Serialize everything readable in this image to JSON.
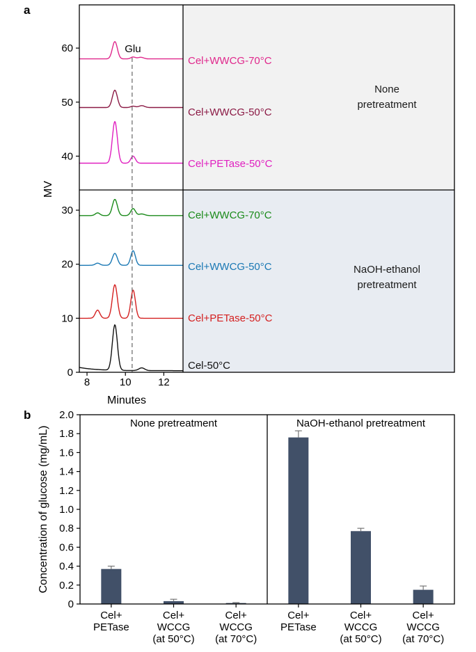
{
  "chart_data": [
    {
      "panel": "a",
      "type": "line",
      "xlabel": "Minutes",
      "ylabel": "MV",
      "xlim": [
        7.6,
        13.0
      ],
      "ylim": [
        0,
        68
      ],
      "xticks": [
        8,
        10,
        12
      ],
      "xtick_labels": [
        "8",
        "10",
        "12"
      ],
      "yticks": [
        0,
        10,
        20,
        30,
        40,
        50,
        60
      ],
      "ytick_labels": [
        "0",
        "10",
        "20",
        "30",
        "40",
        "50",
        "60"
      ],
      "marker": {
        "label": "Glu",
        "x": 10.35
      },
      "regions": [
        {
          "label_line1": "None",
          "label_line2": "pretreatment",
          "color": "#f2f2f2"
        },
        {
          "label_line1": "NaOH-ethanol",
          "label_line2": "pretreatment",
          "color": "#e8ecf2"
        }
      ],
      "series": [
        {
          "name": "Cel+WWCG-70°C",
          "color": "#e0288c",
          "baseline": 58.0,
          "peaks": [
            {
              "x": 9.45,
              "h": 3.2,
              "w": 0.13
            },
            {
              "x": 10.4,
              "h": 0.35,
              "w": 0.12
            },
            {
              "x": 10.8,
              "h": 0.3,
              "w": 0.15
            }
          ]
        },
        {
          "name": "Cel+WWCG-50°C",
          "color": "#8b1a45",
          "baseline": 49.0,
          "peaks": [
            {
              "x": 9.45,
              "h": 3.2,
              "w": 0.13
            },
            {
              "x": 10.4,
              "h": 0.25,
              "w": 0.12
            },
            {
              "x": 10.85,
              "h": 0.35,
              "w": 0.15
            }
          ]
        },
        {
          "name": "Cel+PETase-50°C",
          "color": "#e020c0",
          "baseline": 38.7,
          "peaks": [
            {
              "x": 9.45,
              "h": 7.7,
              "w": 0.13
            },
            {
              "x": 10.4,
              "h": 1.3,
              "w": 0.12
            }
          ]
        },
        {
          "name": "Cel+WWCG-70°C",
          "color": "#1a8a1a",
          "baseline": 29.0,
          "peaks": [
            {
              "x": 8.55,
              "h": 0.5,
              "w": 0.12
            },
            {
              "x": 9.45,
              "h": 3.0,
              "w": 0.13
            },
            {
              "x": 10.4,
              "h": 1.3,
              "w": 0.12
            },
            {
              "x": 10.85,
              "h": 0.3,
              "w": 0.15
            }
          ]
        },
        {
          "name": "Cel+WWCG-50°C",
          "color": "#1a78b4",
          "baseline": 19.8,
          "peaks": [
            {
              "x": 8.55,
              "h": 0.4,
              "w": 0.12
            },
            {
              "x": 9.45,
              "h": 2.2,
              "w": 0.13
            },
            {
              "x": 10.4,
              "h": 2.7,
              "w": 0.12
            }
          ]
        },
        {
          "name": "Cel+PETase-50°C",
          "color": "#d42020",
          "baseline": 10.0,
          "peaks": [
            {
              "x": 8.55,
              "h": 1.5,
              "w": 0.12
            },
            {
              "x": 9.45,
              "h": 6.2,
              "w": 0.13
            },
            {
              "x": 10.4,
              "h": 5.2,
              "w": 0.12
            }
          ]
        },
        {
          "name": "Cel-50°C",
          "color": "#111111",
          "baseline": 0.3,
          "decay": 0.6,
          "peaks": [
            {
              "x": 9.45,
              "h": 8.4,
              "w": 0.13
            },
            {
              "x": 10.85,
              "h": 0.5,
              "w": 0.15
            }
          ]
        }
      ]
    },
    {
      "panel": "b",
      "type": "bar",
      "ylabel": "Concentration of glucose (mg/mL)",
      "ylim": [
        0,
        2.0
      ],
      "yticks": [
        0,
        0.2,
        0.4,
        0.6,
        0.8,
        1.0,
        1.2,
        1.4,
        1.6,
        1.8,
        2.0
      ],
      "ytick_labels": [
        "0",
        "0.2",
        "0.4",
        "0.6",
        "0.8",
        "1.0",
        "1.2",
        "1.4",
        "1.6",
        "1.8",
        "2.0"
      ],
      "bar_color": "#415068",
      "groups": [
        "None pretreatment",
        "NaOH-ethanol pretreatment"
      ],
      "categories": [
        [
          "Cel+",
          "PETase"
        ],
        [
          "Cel+",
          "WCCG",
          "(at 50°C)"
        ],
        [
          "Cel+",
          "WCCG",
          "(at 70°C)"
        ],
        [
          "Cel+",
          "PETase"
        ],
        [
          "Cel+",
          "WCCG",
          "(at 50°C)"
        ],
        [
          "Cel+",
          "WCCG",
          "(at 70°C)"
        ]
      ],
      "values": [
        0.37,
        0.03,
        0.01,
        1.76,
        0.77,
        0.15
      ],
      "errors": [
        0.03,
        0.02,
        0.005,
        0.07,
        0.03,
        0.04
      ]
    }
  ]
}
